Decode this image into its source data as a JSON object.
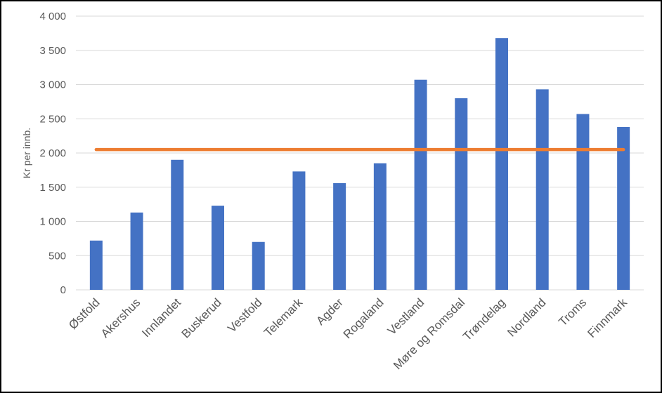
{
  "chart_data": {
    "type": "bar",
    "title": "",
    "xlabel": "",
    "ylabel": "Kr per innb.",
    "ylim": [
      0,
      4000
    ],
    "yticks": [
      0,
      500,
      1000,
      1500,
      2000,
      2500,
      3000,
      3500,
      4000
    ],
    "ytick_labels": [
      "0",
      "500",
      "1 000",
      "1 500",
      "2 000",
      "2 500",
      "3 000",
      "3 500",
      "4 000"
    ],
    "categories": [
      "Østfold",
      "Akershus",
      "Innlandet",
      "Buskerud",
      "Vestfold",
      "Telemark",
      "Agder",
      "Rogaland",
      "Vestland",
      "Møre og Romsdal",
      "Trøndelag",
      "Nordland",
      "Troms",
      "Finnmark"
    ],
    "series": [
      {
        "type": "bar",
        "color": "#4472C4",
        "values": [
          720,
          1130,
          1900,
          1230,
          700,
          1730,
          1560,
          1850,
          3070,
          2800,
          3680,
          2930,
          2570,
          2380
        ]
      },
      {
        "type": "line",
        "color": "#ED7D31",
        "values": [
          2050,
          2050,
          2050,
          2050,
          2050,
          2050,
          2050,
          2050,
          2050,
          2050,
          2050,
          2050,
          2050,
          2050
        ]
      }
    ],
    "grid": true,
    "legend": "none"
  }
}
